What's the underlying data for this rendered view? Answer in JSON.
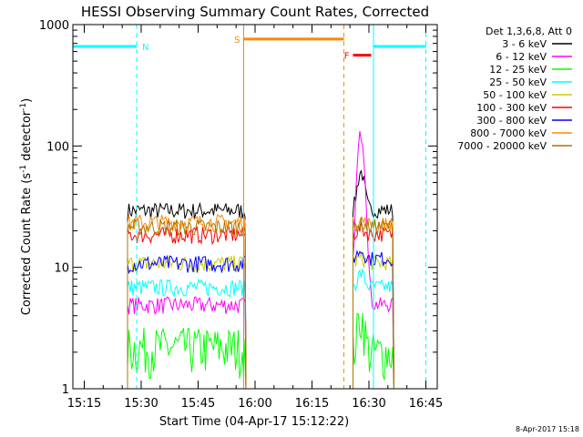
{
  "chart_data": {
    "type": "line",
    "title": "HESSI Observing Summary Count Rates, Corrected",
    "xlabel": "Start Time (04-Apr-17 15:12:22)",
    "ylabel_main": "Corrected Count Rate (s",
    "ylabel_sup1": "-1",
    "ylabel_mid": " detector",
    "ylabel_sup2": "-1",
    "ylabel_end": ")",
    "y_scale": "log",
    "ylim": [
      1,
      1000
    ],
    "xlim_minutes": [
      15.2,
      16.8
    ],
    "x_ticks": [
      {
        "label": "15:15",
        "t": 15.25
      },
      {
        "label": "15:30",
        "t": 15.5
      },
      {
        "label": "15:45",
        "t": 15.75
      },
      {
        "label": "16:00",
        "t": 16.0
      },
      {
        "label": "16:15",
        "t": 16.25
      },
      {
        "label": "16:30",
        "t": 16.5
      },
      {
        "label": "16:45",
        "t": 16.75
      }
    ],
    "y_ticks": [
      {
        "label": "1",
        "v": 1
      },
      {
        "label": "10",
        "v": 10
      },
      {
        "label": "100",
        "v": 100
      },
      {
        "label": "1000",
        "v": 1000
      }
    ],
    "legend_header": "Det 1,3,6,8, Att 0",
    "legend_placement": "right",
    "series": [
      {
        "name": "3 - 6 keV",
        "color": "#000000",
        "seg1": 30,
        "seg2": 30,
        "peak": 62
      },
      {
        "name": "6 - 12 keV",
        "color": "#ff00ff",
        "seg1": 5,
        "seg2": 5,
        "peak": 128
      },
      {
        "name": "12 - 25 keV",
        "color": "#00ff00",
        "seg1": 2.2,
        "seg2": 2.0,
        "peak": 4
      },
      {
        "name": "25 - 50 keV",
        "color": "#00ffff",
        "seg1": 7,
        "seg2": 7,
        "peak": 9
      },
      {
        "name": "50 - 100 keV",
        "color": "#cccc00",
        "seg1": 11,
        "seg2": 11,
        "peak": 12
      },
      {
        "name": "100 - 300 keV",
        "color": "#ff0000",
        "seg1": 19,
        "seg2": 19,
        "peak": 21
      },
      {
        "name": "300 - 800 keV",
        "color": "#0000ff",
        "seg1": 11,
        "seg2": 12,
        "peak": 14
      },
      {
        "name": "800 - 7000 keV",
        "color": "#ff8800",
        "seg1": 24,
        "seg2": 23,
        "peak": 25
      },
      {
        "name": "7000 - 20000 keV",
        "color": "#aa7700",
        "seg1": 22,
        "seg2": 22,
        "peak": 23
      }
    ],
    "flags": [
      {
        "label": "N",
        "color": "#00ffff",
        "start": 15.2,
        "end": 15.48,
        "level": 660
      },
      {
        "label": "",
        "color": "#00ffff",
        "start": 16.52,
        "end": 16.75,
        "level": 660
      },
      {
        "label": "S",
        "color": "#ff8800",
        "start": 15.95,
        "end": 16.39,
        "level": 760
      },
      {
        "label": "F",
        "color": "#ff0000",
        "start": 16.43,
        "end": 16.51,
        "level": 560
      }
    ],
    "vertical_markers": [
      {
        "t": 15.48,
        "color": "#00ffff",
        "style": "dashed"
      },
      {
        "t": 15.95,
        "color": "#ff8800",
        "style": "solid"
      },
      {
        "t": 16.39,
        "color": "#ff8800",
        "style": "dashed"
      },
      {
        "t": 16.52,
        "color": "#00ffff",
        "style": "solid"
      },
      {
        "t": 16.75,
        "color": "#00ffff",
        "style": "dashed"
      }
    ],
    "data_segments": [
      [
        15.44,
        15.96
      ],
      [
        16.43,
        16.61
      ]
    ],
    "footer_date": "8-Apr-2017 15:18"
  }
}
